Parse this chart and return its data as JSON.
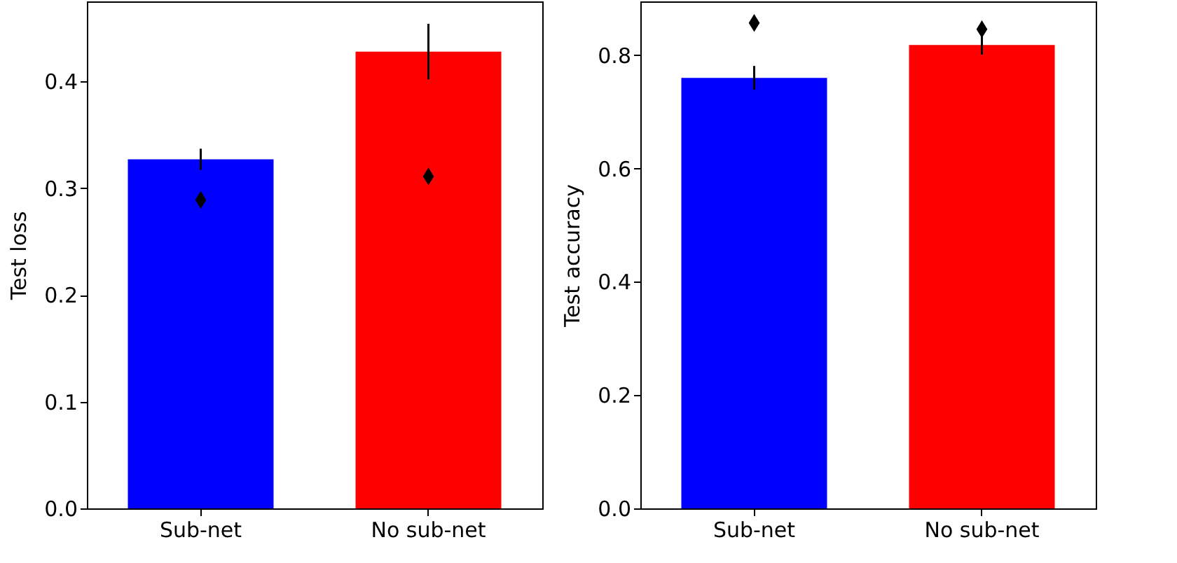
{
  "chart_data": [
    {
      "type": "bar",
      "categories": [
        "Sub-net",
        "No sub-net"
      ],
      "ylabel": "Test loss",
      "ylim": [
        0,
        0.475
      ],
      "yticks": [
        {
          "value": 0,
          "label": "0.0"
        },
        0.1,
        0.2,
        0.3,
        0.4
      ],
      "grid": false,
      "series": [
        {
          "colors": [
            "#0000ff",
            "#ff0000"
          ],
          "values": [
            0.327,
            0.428
          ],
          "errors": [
            0.01,
            0.026
          ]
        },
        {
          "type": "scatter",
          "color": "#000000",
          "marker": "diamond",
          "x": [
            "Sub-net",
            "No sub-net"
          ],
          "values": [
            0.289,
            0.311
          ]
        }
      ]
    },
    {
      "type": "bar",
      "categories": [
        "Sub-net",
        "No sub-net"
      ],
      "ylabel": "Test accuracy",
      "ylim": [
        0,
        0.895
      ],
      "yticks": [
        {
          "value": 0,
          "label": "0.0"
        },
        0.2,
        0.4,
        0.6,
        0.8
      ],
      "grid": false,
      "series": [
        {
          "colors": [
            "#0000ff",
            "#ff0000"
          ],
          "values": [
            0.76,
            0.818
          ],
          "errors": [
            0.021,
            0.017
          ]
        },
        {
          "type": "scatter",
          "color": "#000000",
          "marker": "diamond",
          "x": [
            "Sub-net",
            "No sub-net"
          ],
          "values": [
            0.857,
            0.846
          ]
        }
      ]
    }
  ]
}
